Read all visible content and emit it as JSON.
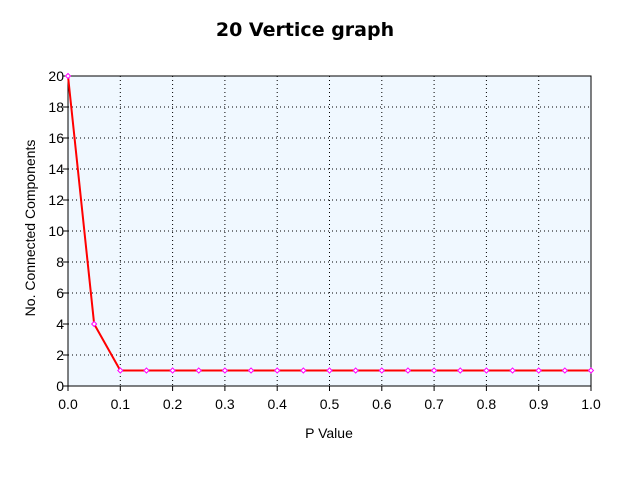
{
  "chart_data": {
    "type": "line",
    "title": "20 Vertice graph",
    "xlabel": "P Value",
    "ylabel": "No. Connected Components",
    "xlim": [
      0.0,
      1.0
    ],
    "ylim": [
      0,
      20
    ],
    "x_ticks": [
      "0.0",
      "0.1",
      "0.2",
      "0.3",
      "0.4",
      "0.5",
      "0.6",
      "0.7",
      "0.8",
      "0.9",
      "1.0"
    ],
    "y_ticks": [
      "0",
      "2",
      "4",
      "6",
      "8",
      "10",
      "12",
      "14",
      "16",
      "18",
      "20"
    ],
    "grid": true,
    "series": [
      {
        "x": [
          0.0,
          0.05,
          0.1,
          0.15,
          0.2,
          0.25,
          0.3,
          0.35,
          0.4,
          0.45,
          0.5,
          0.55,
          0.6,
          0.65,
          0.7,
          0.75,
          0.8,
          0.85,
          0.9,
          0.95,
          1.0
        ],
        "values": [
          20,
          4,
          1,
          1,
          1,
          1,
          1,
          1,
          1,
          1,
          1,
          1,
          1,
          1,
          1,
          1,
          1,
          1,
          1,
          1,
          1
        ],
        "line_color": "#ff0000",
        "marker_color": "#ff00ff"
      }
    ],
    "plot_background": "#f0f8ff"
  }
}
